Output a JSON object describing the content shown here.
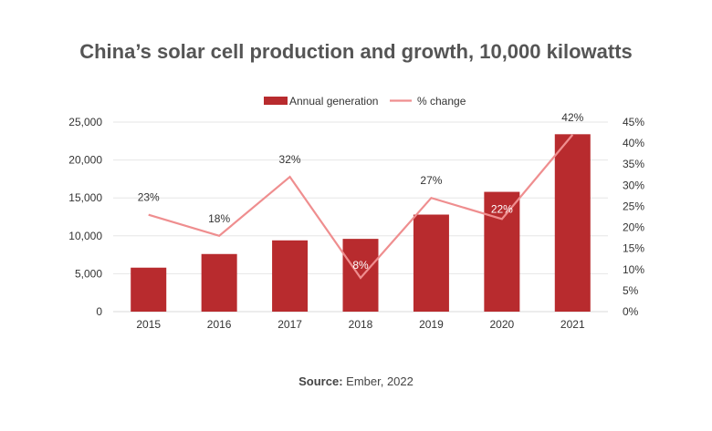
{
  "chart_data": {
    "type": "bar",
    "title": "China’s solar cell production and growth, 10,000 kilowatts",
    "categories": [
      "2015",
      "2016",
      "2017",
      "2018",
      "2019",
      "2020",
      "2021"
    ],
    "series": [
      {
        "name": "Annual generation",
        "type": "bar",
        "axis": "left",
        "values": [
          5800,
          7600,
          9400,
          9600,
          12800,
          15800,
          23400
        ],
        "color": "#b82b2e"
      },
      {
        "name": "% change",
        "type": "line",
        "axis": "right",
        "values": [
          23,
          18,
          32,
          8,
          27,
          22,
          42
        ],
        "labels": [
          "23%",
          "18%",
          "32%",
          "8%",
          "27%",
          "22%",
          "42%"
        ],
        "color": "#ef8e8f"
      }
    ],
    "y_left": {
      "ylim": [
        0,
        25000
      ],
      "ticks": [
        "0",
        "5,000",
        "10,000",
        "15,000",
        "20,000",
        "25,000"
      ]
    },
    "y_right": {
      "ylim": [
        0,
        45
      ],
      "ticks": [
        "0%",
        "5%",
        "10%",
        "15%",
        "20%",
        "25%",
        "30%",
        "35%",
        "40%",
        "45%"
      ]
    },
    "grid": true,
    "legend": "top-center"
  },
  "source": {
    "label": "Source:",
    "text": " Ember, 2022"
  }
}
